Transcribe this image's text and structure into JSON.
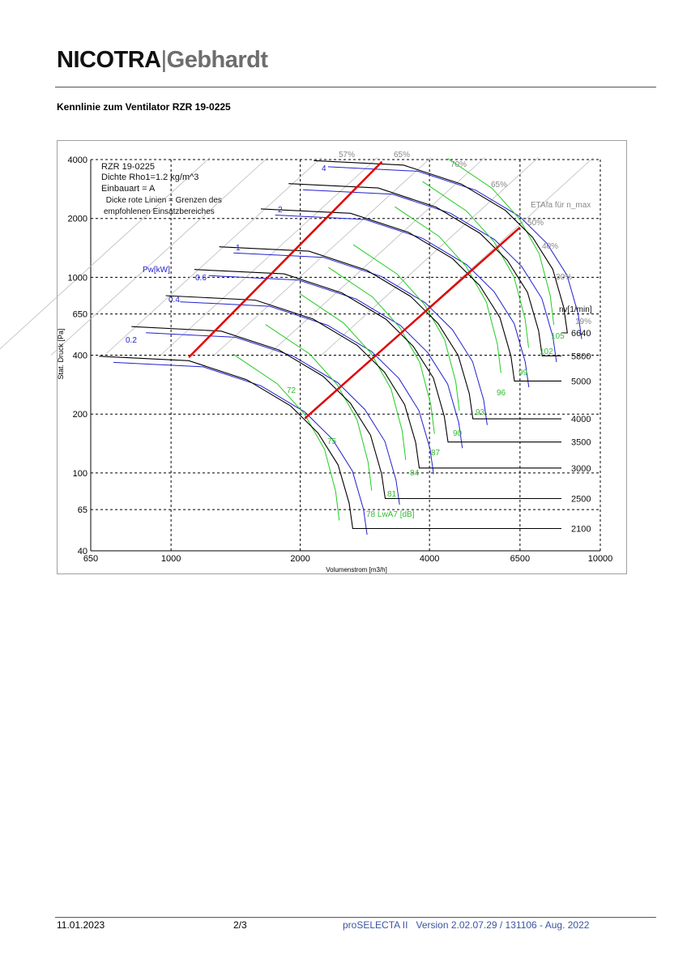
{
  "header": {
    "logo_text": "NICOTRA|Gebhardt",
    "logo_part1": "NICOTRA",
    "logo_sep": "|",
    "logo_part2": "Gebhardt"
  },
  "title": "Kennlinie zum Ventilator RZR 19-0225",
  "footer": {
    "date": "11.01.2023",
    "page": "2/3",
    "software": "proSELECTA II   Version 2.02.07.29 / 131106 - Aug. 2022"
  },
  "chart_data": {
    "type": "line",
    "xlabel": "Volumenstrom [m3/h]",
    "ylabel": "Stat. Druck [Pa]",
    "x_scale": "log",
    "y_scale": "log",
    "xlim": [
      650,
      10000
    ],
    "ylim": [
      40,
      4000
    ],
    "x_ticks": [
      "650",
      "1000",
      "2000",
      "4000",
      "6500",
      "10000"
    ],
    "y_ticks": [
      "4000",
      "2000",
      "1000",
      "650",
      "400",
      "200",
      "100",
      "65",
      "40"
    ],
    "grid": true,
    "info_lines": [
      "RZR 19-0225",
      "Dichte Rho1=1.2 kg/m^3",
      "Einbauart = A",
      " Dicke rote Linien = Grenzen des",
      "empfohlenen Einsatzbereiches"
    ],
    "speed_unit_label": "nv[1/min]",
    "power_label": "Pw[kW]",
    "power_values": [
      "4",
      "2",
      "1",
      "0.6",
      "0.4",
      "0.2"
    ],
    "noise_values": [
      "72",
      "75",
      "78 LwA7 [dB]",
      "81",
      "84",
      "87",
      "90",
      "93",
      "96",
      "99",
      "102",
      "105"
    ],
    "efficiency_labels": [
      "57%",
      "65%",
      "70%",
      "65%",
      "ETAfa für n_max",
      "50%",
      "40%",
      "30%",
      "19%"
    ],
    "colors": {
      "speed": "#000000",
      "power": "#2020d0",
      "noise": "#22cc22",
      "limit": "#e00000",
      "efficiency": "#bbbbbb",
      "label_grey": "#888888"
    },
    "series": [
      {
        "name": "6640",
        "x": [
          2150,
          3478,
          4743,
          6008,
          6956,
          7747,
          8221,
          8379
        ],
        "y": [
          3950,
          3750,
          3000,
          2200,
          1600,
          1100,
          700,
          520
        ]
      },
      {
        "name": "5800",
        "x": [
          1878,
          3038,
          4143,
          5248,
          6076,
          6767,
          7181,
          7319
        ],
        "y": [
          3013,
          2861,
          2288,
          1678,
          1220,
          839,
          534,
          397
        ]
      },
      {
        "name": "5000",
        "x": [
          1619,
          2619,
          3571,
          4524,
          5238,
          5833,
          6190,
          6310
        ],
        "y": [
          2239,
          2126,
          1701,
          1247,
          907,
          624,
          397,
          295
        ]
      },
      {
        "name": "4000",
        "x": [
          1295,
          2095,
          2857,
          3619,
          4190,
          4667,
          4952,
          5048
        ],
        "y": [
          1433,
          1361,
          1088,
          798,
          580,
          399,
          254,
          189
        ]
      },
      {
        "name": "3500",
        "x": [
          1133,
          1833,
          2500,
          3167,
          3667,
          4083,
          4333,
          4417
        ],
        "y": [
          1097,
          1042,
          833,
          611,
          444,
          306,
          194,
          144
        ]
      },
      {
        "name": "3000",
        "x": [
          972,
          1572,
          2143,
          2715,
          3143,
          3500,
          3715,
          3786
        ],
        "y": [
          806,
          765,
          612,
          449,
          327,
          224,
          143,
          106
        ]
      },
      {
        "name": "2500",
        "x": [
          809,
          1309,
          1785,
          2261,
          2618,
          2916,
          3094,
          3154
        ],
        "y": [
          560,
          531,
          425,
          312,
          227,
          156,
          99,
          74
        ]
      },
      {
        "name": "2100",
        "x": [
          680,
          1100,
          1500,
          1900,
          2200,
          2450,
          2600,
          2650
        ],
        "y": [
          395,
          375,
          300,
          220,
          160,
          110,
          70,
          52
        ]
      }
    ],
    "limit_lines": [
      {
        "x": [
          1100,
          3100
        ],
        "y": [
          390,
          3900
        ]
      },
      {
        "x": [
          2050,
          6500
        ],
        "y": [
          190,
          1800
        ]
      }
    ]
  }
}
